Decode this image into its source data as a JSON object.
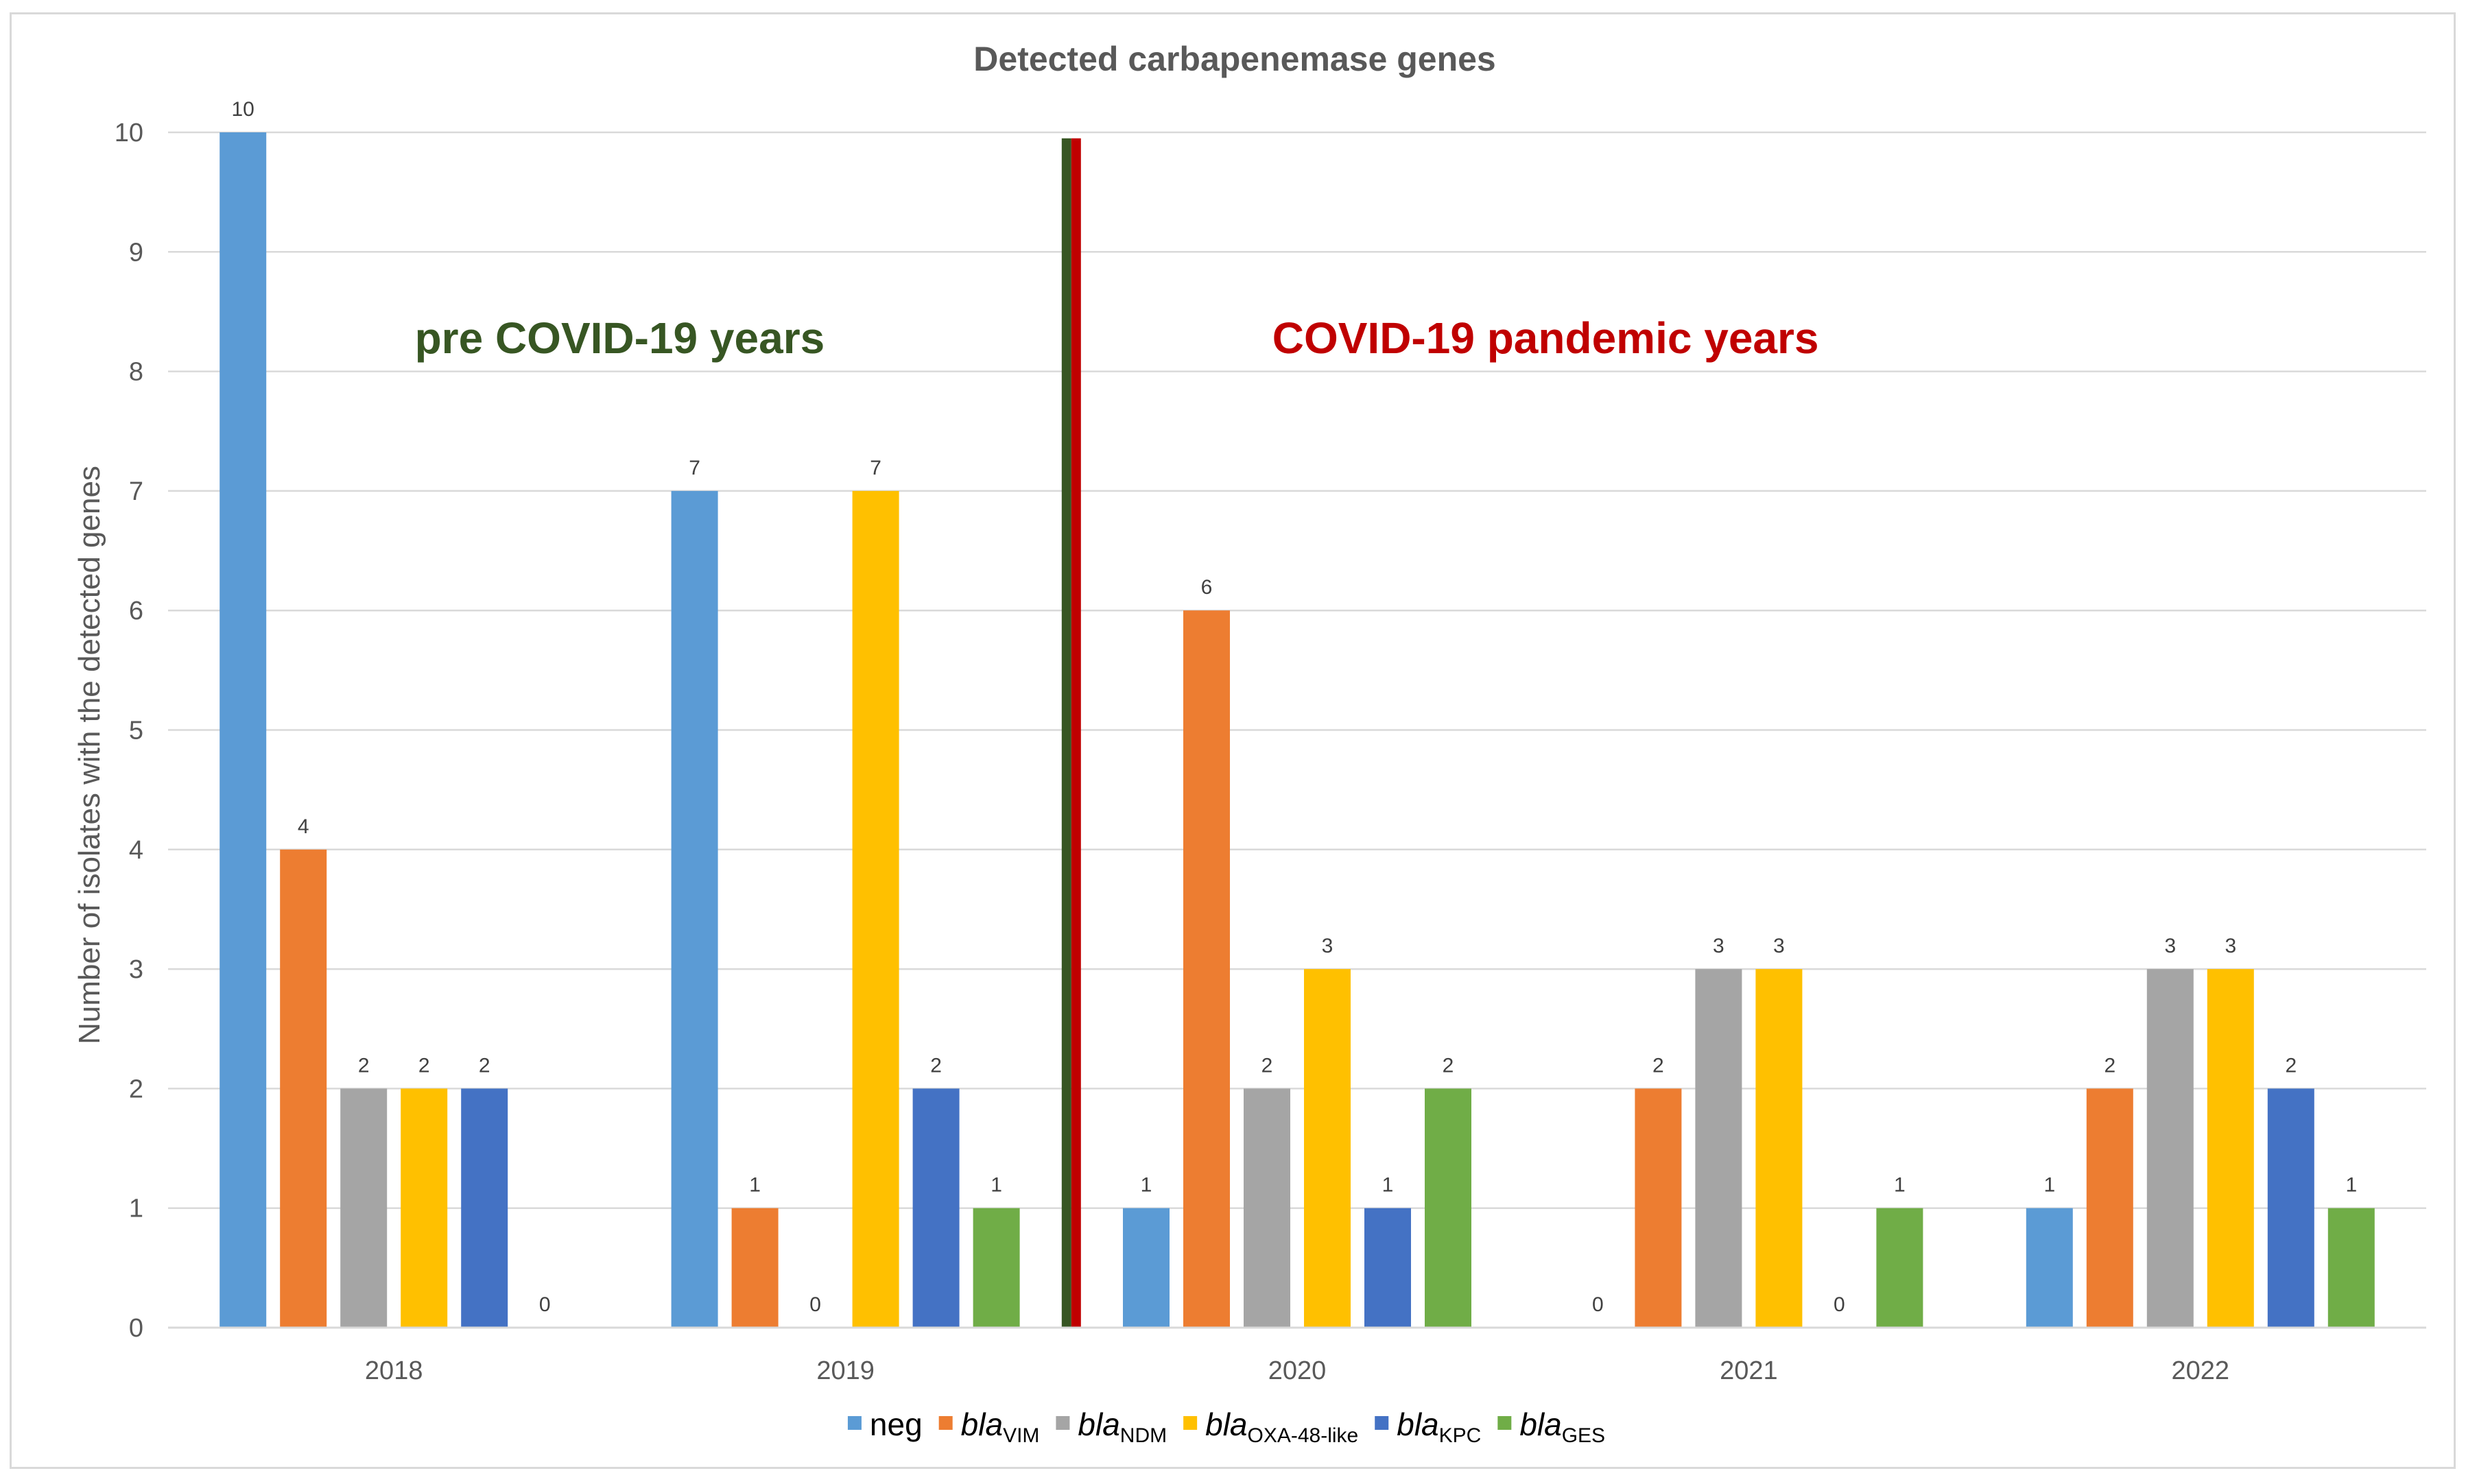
{
  "chart_data": {
    "type": "bar",
    "title": "Detected carbapenemase genes",
    "xlabel": "",
    "ylabel": "Number of isolates with the detected genes",
    "categories": [
      "2018",
      "2019",
      "2020",
      "2021",
      "2022"
    ],
    "ylim": [
      0,
      10
    ],
    "yticks": [
      "0",
      "1",
      "2",
      "3",
      "4",
      "5",
      "6",
      "7",
      "8",
      "9",
      "10"
    ],
    "grid": true,
    "legend_position": "bottom",
    "series": [
      {
        "name": "neg",
        "prefix": "neg",
        "subscript": "",
        "italic": false,
        "color": "#5b9bd5",
        "values": [
          10,
          7,
          1,
          0,
          1
        ]
      },
      {
        "name": "blaVIM",
        "prefix": "bla",
        "subscript": "VIM",
        "italic": true,
        "color": "#ed7d31",
        "values": [
          4,
          1,
          6,
          2,
          2
        ]
      },
      {
        "name": "blaNDM",
        "prefix": "bla",
        "subscript": "NDM",
        "italic": true,
        "color": "#a5a5a5",
        "values": [
          2,
          0,
          2,
          3,
          3
        ]
      },
      {
        "name": "blaOXA-48-like",
        "prefix": "bla",
        "subscript": "OXA-48-like",
        "italic": true,
        "color": "#ffc000",
        "values": [
          2,
          7,
          3,
          3,
          3
        ]
      },
      {
        "name": "blaKPC",
        "prefix": "bla",
        "subscript": "KPC",
        "italic": true,
        "color": "#4472c4",
        "values": [
          2,
          2,
          1,
          0,
          2
        ]
      },
      {
        "name": "blaGES",
        "prefix": "bla",
        "subscript": "GES",
        "italic": true,
        "color": "#70ad47",
        "values": [
          0,
          1,
          2,
          1,
          1
        ]
      }
    ],
    "annotations": [
      {
        "text": "pre COVID-19 years",
        "color": "#375623"
      },
      {
        "text": "COVID-19 pandemic years",
        "color": "#c00000"
      }
    ],
    "divider": {
      "between": [
        "2019",
        "2020"
      ],
      "colors": [
        "#375623",
        "#c00000"
      ],
      "height_value": 9.95
    }
  }
}
